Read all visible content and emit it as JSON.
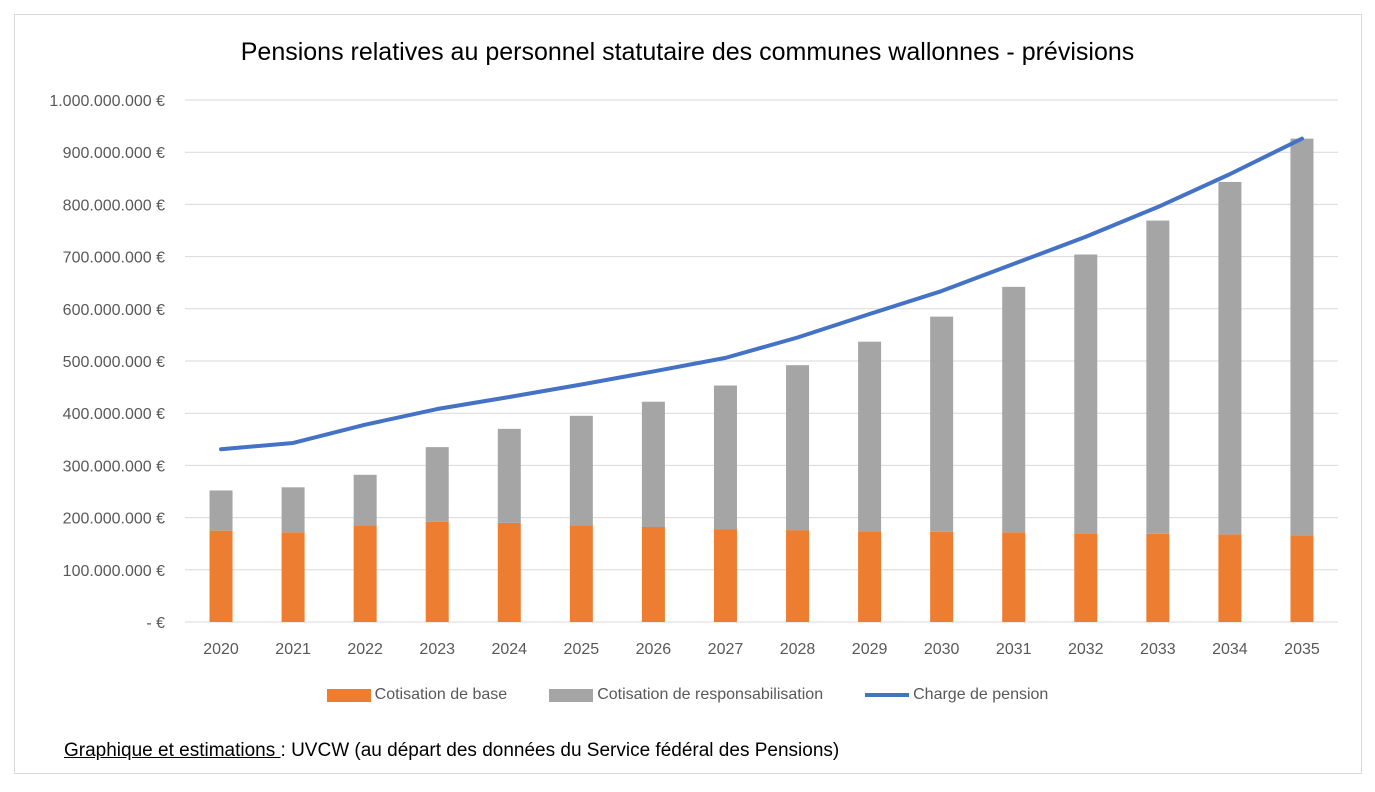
{
  "chart_data": {
    "type": "bar",
    "title": "Pensions relatives au personnel statutaire des communes wallonnes - prévisions",
    "categories": [
      "2020",
      "2021",
      "2022",
      "2023",
      "2024",
      "2025",
      "2026",
      "2027",
      "2028",
      "2029",
      "2030",
      "2031",
      "2032",
      "2033",
      "2034",
      "2035"
    ],
    "y_tick_labels": [
      "-  €",
      "100.000.000 €",
      "200.000.000 €",
      "300.000.000 €",
      "400.000.000 €",
      "500.000.000 €",
      "600.000.000 €",
      "700.000.000 €",
      "800.000.000 €",
      "900.000.000 €",
      "1.000.000.000 €"
    ],
    "ylim": [
      0,
      1000000000
    ],
    "grid": true,
    "legend_position": "bottom",
    "stacked": true,
    "series": [
      {
        "name": "Cotisation de base",
        "kind": "bar",
        "color": "#ed7d31",
        "values": [
          175000000,
          172000000,
          185000000,
          192000000,
          190000000,
          185000000,
          182000000,
          178000000,
          176000000,
          174000000,
          173000000,
          172000000,
          170000000,
          169000000,
          168000000,
          166000000
        ]
      },
      {
        "name": "Cotisation de responsabilisation",
        "kind": "bar",
        "color": "#a5a5a5",
        "values": [
          77000000,
          86000000,
          97000000,
          143000000,
          180000000,
          210000000,
          240000000,
          275000000,
          316000000,
          363000000,
          412000000,
          470000000,
          534000000,
          600000000,
          675000000,
          760000000
        ]
      },
      {
        "name": "Charge de pension",
        "kind": "line",
        "color": "#4472c4",
        "values": [
          331000000,
          343000000,
          378000000,
          408000000,
          431000000,
          455000000,
          480000000,
          506000000,
          545000000,
          590000000,
          634000000,
          686000000,
          738000000,
          795000000,
          858000000,
          926000000
        ]
      }
    ]
  },
  "source": {
    "label": "Graphique et estimations ",
    "text": ": UVCW (au départ des données du Service fédéral des Pensions)"
  }
}
